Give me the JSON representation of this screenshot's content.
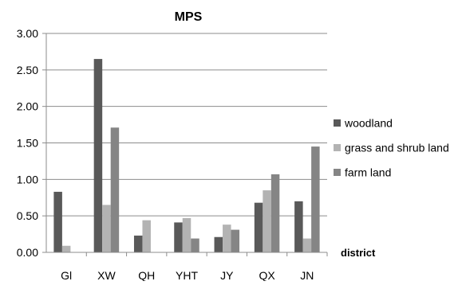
{
  "chart_data": {
    "type": "bar",
    "title": "MPS",
    "xlabel": "district",
    "ylabel": "",
    "categories": [
      "Gl",
      "XW",
      "QH",
      "YHT",
      "JY",
      "QX",
      "JN"
    ],
    "ylim": [
      0,
      3
    ],
    "yticks": [
      "0.00",
      "0.50",
      "1.00",
      "1.50",
      "2.00",
      "2.50",
      "3.00"
    ],
    "grid": true,
    "legend_position": "right",
    "series": [
      {
        "name": "woodland",
        "color": "#595959",
        "values": [
          0.83,
          2.65,
          0.23,
          0.41,
          0.21,
          0.68,
          0.7
        ]
      },
      {
        "name": "grass and shrub land",
        "color": "#b3b3b3",
        "values": [
          0.09,
          0.65,
          0.44,
          0.47,
          0.38,
          0.85,
          0.19
        ]
      },
      {
        "name": "farm land",
        "color": "#858585",
        "values": [
          0.0,
          1.71,
          0.0,
          0.19,
          0.31,
          1.07,
          1.45
        ]
      }
    ]
  }
}
